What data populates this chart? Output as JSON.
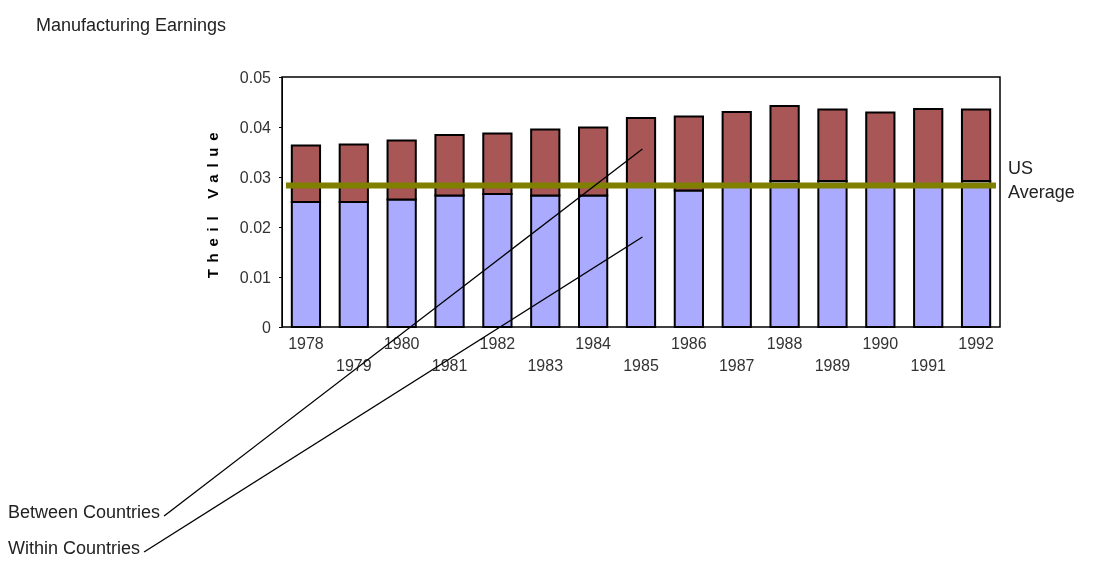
{
  "chart_data": {
    "type": "bar",
    "title": "Manufacturing Earnings",
    "ylabel": "Theil Value",
    "categories": [
      "1978",
      "1979",
      "1980",
      "1981",
      "1982",
      "1983",
      "1984",
      "1985",
      "1986",
      "1987",
      "1988",
      "1989",
      "1990",
      "1991",
      "1992"
    ],
    "stacked": true,
    "series": [
      {
        "name": "Within Countries",
        "color": "#aaaaff",
        "values": [
          0.025,
          0.025,
          0.0255,
          0.0263,
          0.0266,
          0.0263,
          0.0263,
          0.028,
          0.0273,
          0.028,
          0.0292,
          0.0292,
          0.028,
          0.028,
          0.0292
        ]
      },
      {
        "name": "Between Countries",
        "color": "#a85656",
        "values": [
          0.0113,
          0.0115,
          0.0118,
          0.0121,
          0.0121,
          0.0132,
          0.0136,
          0.0138,
          0.0148,
          0.015,
          0.015,
          0.0143,
          0.0149,
          0.0156,
          0.0143
        ]
      }
    ],
    "ylim": [
      0,
      0.05
    ],
    "yticks": [
      0,
      0.01,
      0.02,
      0.03,
      0.04,
      0.05
    ],
    "ref_lines": [
      {
        "axis": "y",
        "value": 0.0283,
        "label": "US Average",
        "color": "#7f7f00"
      }
    ],
    "grid": false
  }
}
